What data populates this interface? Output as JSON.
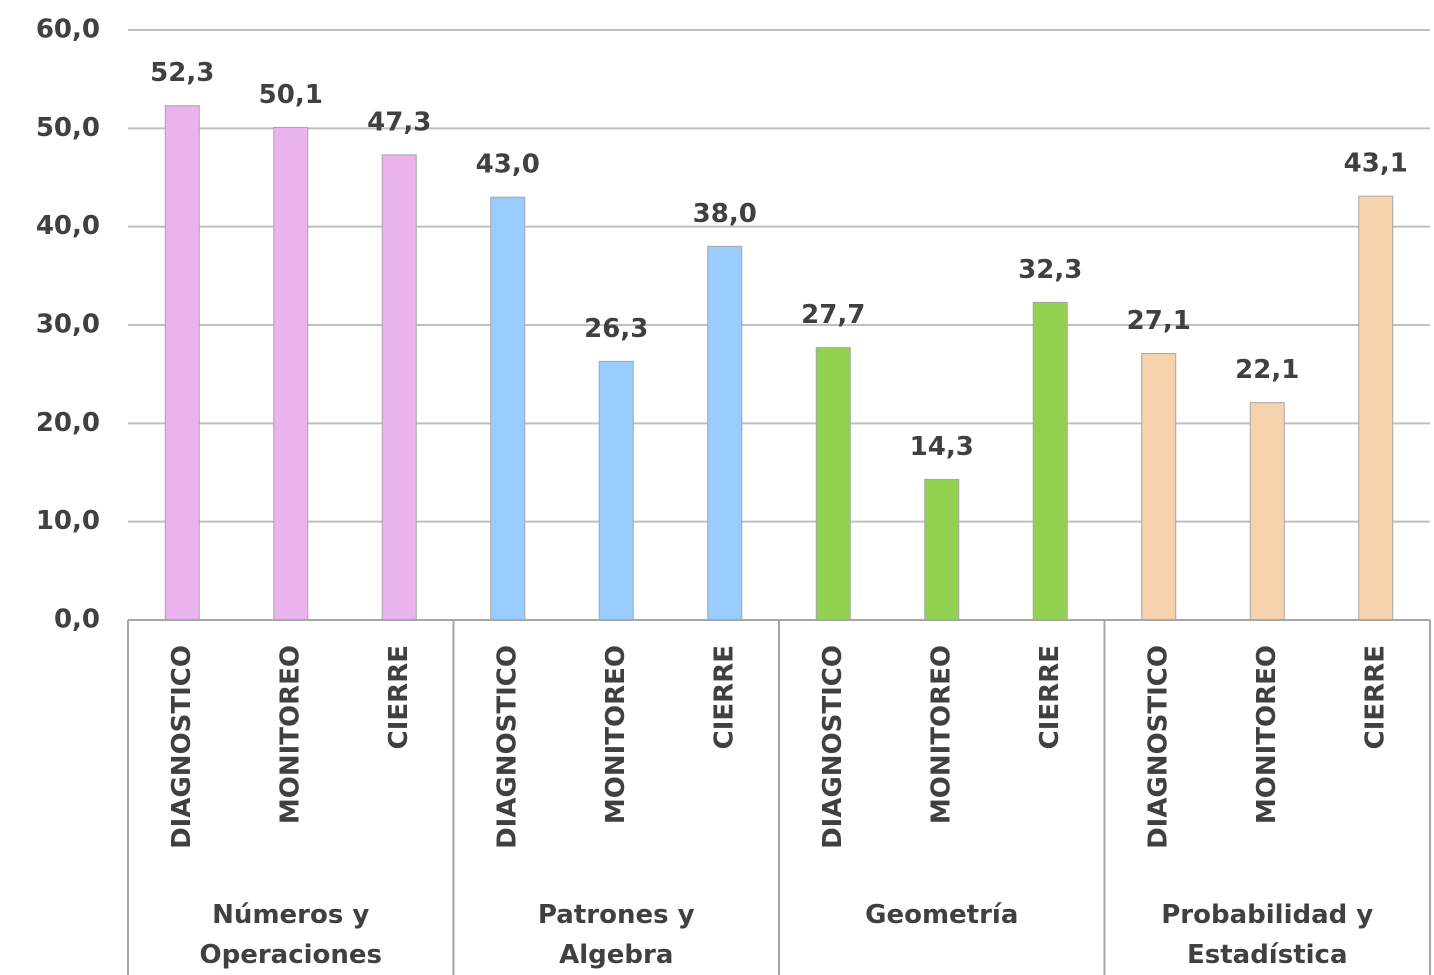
{
  "chart_data": {
    "type": "bar",
    "groups": [
      {
        "label": "Números y Operaciones",
        "color": "#ebb3ec",
        "categories": [
          "DIAGNOSTICO",
          "MONITOREO",
          "CIERRE"
        ],
        "values": [
          52.3,
          50.1,
          47.3
        ],
        "value_labels": [
          "52,3",
          "50,1",
          "47,3"
        ]
      },
      {
        "label": "Patrones y Algebra",
        "color": "#99ccff",
        "categories": [
          "DIAGNOSTICO",
          "MONITOREO",
          "CIERRE"
        ],
        "values": [
          43.0,
          26.3,
          38.0
        ],
        "value_labels": [
          "43,0",
          "26,3",
          "38,0"
        ]
      },
      {
        "label": "Geometría",
        "color": "#92d050",
        "categories": [
          "DIAGNOSTICO",
          "MONITOREO",
          "CIERRE"
        ],
        "values": [
          27.7,
          14.3,
          32.3
        ],
        "value_labels": [
          "27,7",
          "14,3",
          "32,3"
        ]
      },
      {
        "label": "Probabilidad y Estadística",
        "color": "#f6d3ad",
        "categories": [
          "DIAGNOSTICO",
          "MONITOREO",
          "CIERRE"
        ],
        "values": [
          27.1,
          22.1,
          43.1
        ],
        "value_labels": [
          "27,1",
          "22,1",
          "43,1"
        ]
      }
    ],
    "ylim": [
      0,
      60
    ],
    "yticks": [
      {
        "value": 0,
        "label": "0,0"
      },
      {
        "value": 10,
        "label": "10,0"
      },
      {
        "value": 20,
        "label": "20,0"
      },
      {
        "value": 30,
        "label": "30,0"
      },
      {
        "value": 40,
        "label": "40,0"
      },
      {
        "value": 50,
        "label": "50,0"
      },
      {
        "value": 60,
        "label": "60,0"
      }
    ],
    "grid": true
  }
}
